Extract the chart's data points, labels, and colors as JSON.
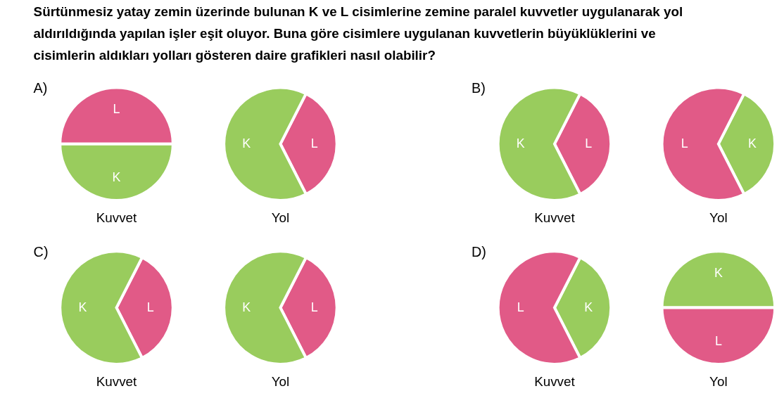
{
  "chart_data": [
    {
      "type": "pie",
      "title": "Kuvvet",
      "annotations": [
        "Sürtünmesiz yatay zemin üzerinde bulunan K ve L cisimlerine zemine paralel kuvvetler uygulanarak yol aldırıldığında yapılan işler eşit oluyor. Buna göre cisimlere uygulanan kuvvetlerin büyüklüklerini ve cisimlerin aldıkları yolları gösteren daire grafikleri nasıl olabilir?",
        "A)"
      ],
      "categories": [
        "L",
        "K"
      ],
      "values": [
        50,
        50
      ],
      "colors": [
        "#e15a87",
        "#99cc5d"
      ]
    },
    {
      "type": "pie",
      "title": "Yol",
      "categories": [
        "L",
        "K"
      ],
      "values": [
        35,
        65
      ],
      "colors": [
        "#e15a87",
        "#99cc5d"
      ]
    },
    {
      "type": "pie",
      "title": "Kuvvet",
      "annotations": [
        "B)"
      ],
      "categories": [
        "L",
        "K"
      ],
      "values": [
        35,
        65
      ],
      "colors": [
        "#e15a87",
        "#99cc5d"
      ]
    },
    {
      "type": "pie",
      "title": "Yol",
      "categories": [
        "K",
        "L"
      ],
      "values": [
        35,
        65
      ],
      "colors": [
        "#99cc5d",
        "#e15a87"
      ]
    },
    {
      "type": "pie",
      "title": "Kuvvet",
      "annotations": [
        "C)"
      ],
      "categories": [
        "L",
        "K"
      ],
      "values": [
        35,
        65
      ],
      "colors": [
        "#e15a87",
        "#99cc5d"
      ]
    },
    {
      "type": "pie",
      "title": "Yol",
      "categories": [
        "L",
        "K"
      ],
      "values": [
        35,
        65
      ],
      "colors": [
        "#e15a87",
        "#99cc5d"
      ]
    },
    {
      "type": "pie",
      "title": "Kuvvet",
      "annotations": [
        "D)"
      ],
      "categories": [
        "K",
        "L"
      ],
      "values": [
        35,
        65
      ],
      "colors": [
        "#99cc5d",
        "#e15a87"
      ]
    },
    {
      "type": "pie",
      "title": "Yol",
      "categories": [
        "K",
        "L"
      ],
      "values": [
        50,
        50
      ],
      "colors": [
        "#99cc5d",
        "#e15a87"
      ]
    }
  ]
}
